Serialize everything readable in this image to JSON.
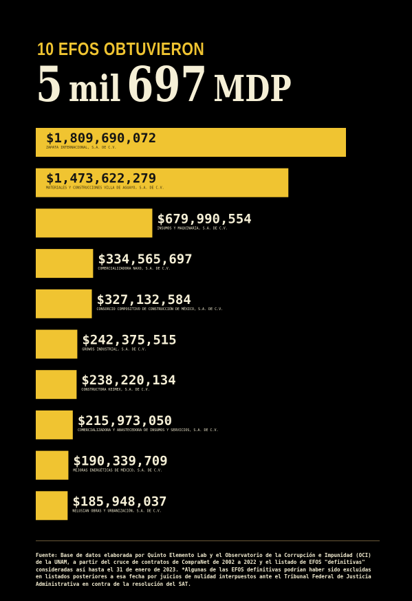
{
  "header": {
    "kicker": "10 EFOS OBTUVIERON",
    "headline_num1": "5",
    "headline_word1": "mil",
    "headline_num2": "697",
    "headline_word2": "MDP"
  },
  "colors": {
    "background": "#000000",
    "bar": "#f0c431",
    "text_light": "#f5efd6",
    "text_dark": "#141414"
  },
  "chart_data": {
    "type": "bar",
    "orientation": "horizontal",
    "title": "",
    "xlabel": "",
    "ylabel": "",
    "grid": false,
    "legend": "none",
    "categories": [
      "ZAPATA INTERNACIONAL, S.A. DE C.V.",
      "MATERIALES Y CONSTRUCCIONES VILLA DE AGUAYO, S.A. DE C.V.",
      "INSUMOS Y MAQUINARIA, S.A. DE C.V.",
      "COMERCIALIZADORA NAXO, S.A. DE C.V.",
      "CONSORCIO COMPOSITIVO DE CONSTRUCCIÓN DE MÉXICO, S.A. DE C.V.",
      "GROWOS INDUSTRIAL, S.A. DE C.V.",
      "CONSTRUCTORA KEIMEX, S.A. DE C.V.",
      "COMERCIALIZADORA Y ABASTECEDORA DE INSUMOS Y SERVICIOS, S.A. DE C.V.",
      "MEJORAS ENERGÉTICAS DE MÉXICO, S.A. DE C.V.",
      "NELUSIAN OBRAS Y URBANIZACIÓN, S.A. DE C.V."
    ],
    "value_labels": [
      "$1,809,690,072",
      "$1,473,622,279",
      "$679,990,554",
      "$334,565,697",
      "$327,132,584",
      "$242,375,515",
      "$238,220,134",
      "$215,973,050",
      "$190,339,709",
      "$185,948,037"
    ],
    "values": [
      1809690072,
      1473622279,
      679990554,
      334565697,
      327132584,
      242375515,
      238220134,
      215973050,
      190339709,
      185948037
    ],
    "xlim": [
      0,
      1809690072
    ]
  },
  "footer": {
    "source": "Fuente: Base de datos elaborada por Quinto Elemento Lab y el Observatorio de la Corrupción e Impunidad (OCI) de la UNAM, a partir del cruce de contratos de CompraNet de 2002 a 2022 y el listado de EFOS \"definitivas\" consideradas así hasta el 31 de enero de 2023. *Algunas de las EFOS definitivas podrían haber sido excluidas en listados posteriores a esa fecha por juicios de nulidad interpuestos ante el Tribunal Federal de Justicia Administrativa en contra de la resolución del SAT."
  }
}
